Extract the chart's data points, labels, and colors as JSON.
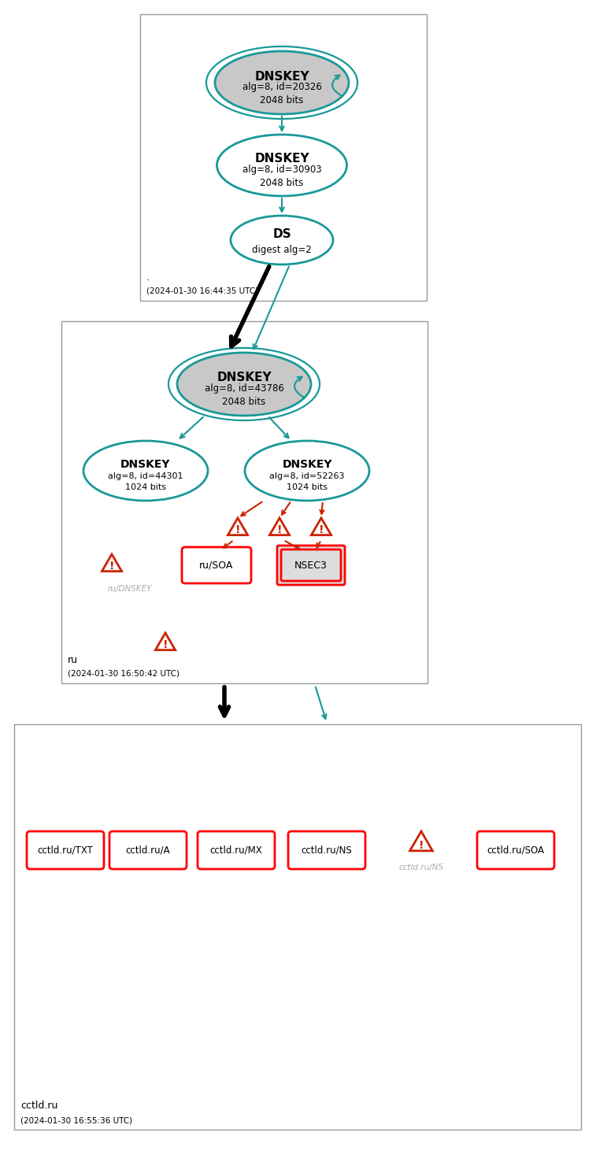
{
  "teal": "#1A9898",
  "red": "#CC2200",
  "gray_fill": "#C8C8C8",
  "box_border": "#999999",
  "light_gray_text": "#AAAAAA",
  "zone1_label": ".",
  "zone1_time": "(2024-01-30 16:44:35 UTC)",
  "zone1_dnskey1_title": "DNSKEY",
  "zone1_dnskey1_sub": "alg=8, id=20326\n2048 bits",
  "zone1_dnskey2_title": "DNSKEY",
  "zone1_dnskey2_sub": "alg=8, id=30903\n2048 bits",
  "zone1_ds_title": "DS",
  "zone1_ds_sub": "digest alg=2",
  "zone2_label": "ru",
  "zone2_time": "(2024-01-30 16:50:42 UTC)",
  "zone2_dnskey1_title": "DNSKEY",
  "zone2_dnskey1_sub": "alg=8, id=43786\n2048 bits",
  "zone2_dnskey2_title": "DNSKEY",
  "zone2_dnskey2_sub": "alg=8, id=44301\n1024 bits",
  "zone2_dnskey3_title": "DNSKEY",
  "zone2_dnskey3_sub": "alg=8, id=52263\n1024 bits",
  "zone2_soa": "ru/SOA",
  "zone2_nsec3": "NSEC3",
  "zone2_dnskey_warn": "ru/DNSKEY",
  "zone3_label": "cctld.ru",
  "zone3_time": "(2024-01-30 16:55:36 UTC)",
  "zone3_nodes": [
    "cctld.ru/TXT",
    "cctld.ru/A",
    "cctld.ru/MX",
    "cctld.ru/NS",
    "cctld.ru/SOA"
  ],
  "zone3_warn_label": "cctld.ru/NS"
}
